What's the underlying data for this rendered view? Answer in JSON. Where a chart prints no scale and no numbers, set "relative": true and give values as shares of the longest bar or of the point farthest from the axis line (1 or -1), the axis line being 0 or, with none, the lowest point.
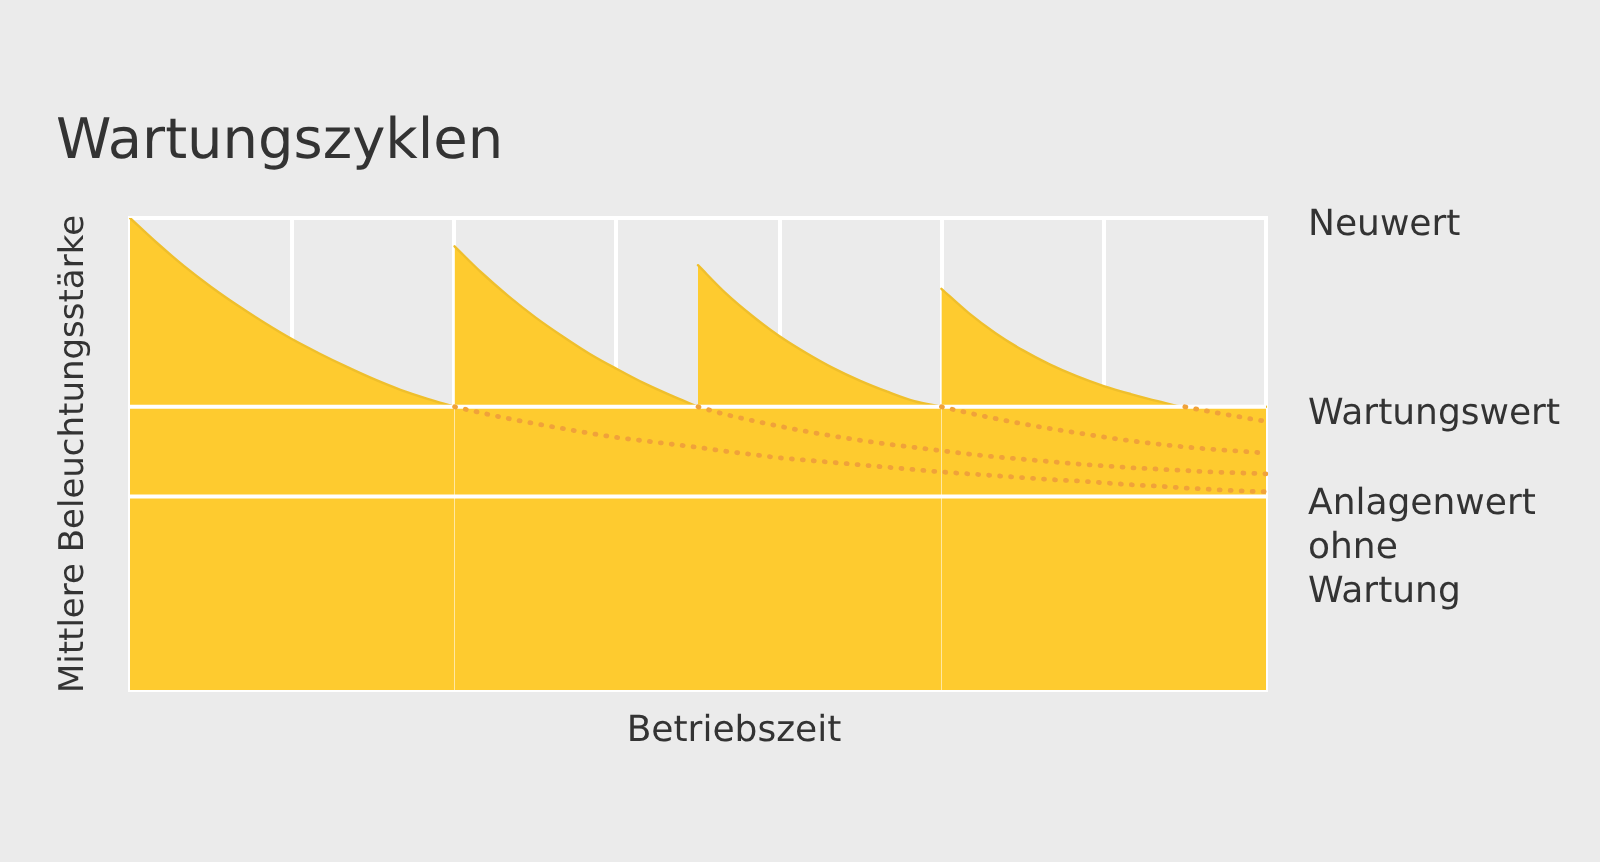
{
  "chart_data": {
    "type": "area",
    "title": "Wartungszyklen",
    "xlabel": "Betriebszeit",
    "ylabel": "Mittlere Beleuchtungsstärke",
    "relative": true,
    "grid": "x",
    "tick_labels": false,
    "categories": [
      null,
      null,
      null,
      null,
      null,
      null,
      null,
      null,
      null,
      null,
      null,
      null,
      null,
      null,
      null,
      null,
      null,
      null,
      null,
      null,
      null,
      null,
      null,
      null,
      null,
      null,
      null,
      null,
      null,
      null,
      null,
      null,
      null,
      null,
      null,
      null,
      null,
      null,
      null,
      null,
      null,
      null,
      null
    ],
    "series": [
      {
        "color": "#fecb2f",
        "values": [
          1.0,
          0.947,
          0.898,
          0.854,
          0.814,
          0.777,
          0.743,
          0.713,
          0.685,
          0.659,
          0.636,
          0.617,
          0.6,
          null,
          null,
          null,
          null,
          null,
          null,
          null,
          null,
          null,
          null,
          null,
          null,
          null,
          null,
          null,
          null,
          null,
          null,
          null,
          null,
          null,
          null,
          null,
          null,
          null,
          null,
          null,
          null,
          null,
          null
        ]
      },
      {
        "color": "#fecb2f",
        "values": [
          null,
          null,
          null,
          null,
          null,
          null,
          null,
          null,
          null,
          null,
          null,
          null,
          0.94,
          0.884,
          0.834,
          0.789,
          0.749,
          0.712,
          0.68,
          0.65,
          0.624,
          0.6,
          null,
          null,
          null,
          null,
          null,
          null,
          null,
          null,
          null,
          null,
          null,
          null,
          null,
          null,
          null,
          null,
          null,
          null,
          null,
          null,
          null
        ]
      },
      {
        "color": "#fecb2f",
        "values": [
          null,
          null,
          null,
          null,
          null,
          null,
          null,
          null,
          null,
          null,
          null,
          null,
          null,
          null,
          null,
          null,
          null,
          null,
          null,
          null,
          null,
          0.9,
          0.842,
          0.793,
          0.75,
          0.714,
          0.682,
          0.655,
          0.632,
          0.612,
          0.6,
          null,
          null,
          null,
          null,
          null,
          null,
          null,
          null,
          null,
          null,
          null,
          null
        ]
      },
      {
        "color": "#fecb2f",
        "values": [
          null,
          null,
          null,
          null,
          null,
          null,
          null,
          null,
          null,
          null,
          null,
          null,
          null,
          null,
          null,
          null,
          null,
          null,
          null,
          null,
          null,
          null,
          null,
          null,
          null,
          null,
          null,
          null,
          null,
          null,
          0.85,
          0.799,
          0.756,
          0.72,
          0.69,
          0.665,
          0.644,
          0.627,
          0.612,
          0.6,
          0.6,
          0.6,
          0.6
        ]
      },
      {
        "type": "line",
        "line_style": "dotted",
        "color": "#f0a23a",
        "values": [
          null,
          null,
          null,
          null,
          null,
          null,
          null,
          null,
          null,
          null,
          null,
          null,
          0.6,
          0.587,
          0.575,
          0.564,
          0.554,
          0.544,
          0.535,
          0.528,
          0.521,
          0.514,
          0.506,
          0.499,
          0.492,
          0.487,
          0.482,
          0.477,
          0.472,
          0.467,
          0.462,
          0.458,
          0.454,
          0.45,
          0.446,
          0.443,
          0.439,
          0.435,
          0.432,
          0.428,
          0.425,
          0.422,
          0.42
        ]
      },
      {
        "type": "line",
        "line_style": "dotted",
        "color": "#f0a23a",
        "values": [
          null,
          null,
          null,
          null,
          null,
          null,
          null,
          null,
          null,
          null,
          null,
          null,
          null,
          null,
          null,
          null,
          null,
          null,
          null,
          null,
          null,
          0.6,
          0.584,
          0.571,
          0.559,
          0.548,
          0.538,
          0.529,
          0.521,
          0.514,
          0.507,
          0.5,
          0.494,
          0.489,
          0.484,
          0.479,
          0.475,
          0.471,
          0.468,
          0.465,
          0.462,
          0.46,
          0.458
        ]
      },
      {
        "type": "line",
        "line_style": "dotted",
        "color": "#f0a23a",
        "values": [
          null,
          null,
          null,
          null,
          null,
          null,
          null,
          null,
          null,
          null,
          null,
          null,
          null,
          null,
          null,
          null,
          null,
          null,
          null,
          null,
          null,
          null,
          null,
          null,
          null,
          null,
          null,
          null,
          null,
          null,
          0.6,
          0.587,
          0.575,
          0.564,
          0.554,
          0.545,
          0.536,
          0.528,
          0.521,
          0.515,
          0.51,
          0.506,
          0.502
        ]
      },
      {
        "type": "line",
        "line_style": "dotted",
        "color": "#f0a23a",
        "values": [
          null,
          null,
          null,
          null,
          null,
          null,
          null,
          null,
          null,
          null,
          null,
          null,
          null,
          null,
          null,
          null,
          null,
          null,
          null,
          null,
          null,
          null,
          null,
          null,
          null,
          null,
          null,
          null,
          null,
          null,
          null,
          null,
          null,
          null,
          null,
          null,
          null,
          null,
          null,
          0.6,
          0.589,
          0.579,
          0.569
        ]
      }
    ],
    "ref_lines": [
      {
        "axis": "y",
        "value": 0.6,
        "label": "Wartungswert",
        "color": "#ffffff"
      },
      {
        "axis": "y",
        "value": 0.41,
        "label": "Anlagenwert ohne Wartung",
        "color": "#ffffff"
      }
    ],
    "annotations": [
      "Neuwert"
    ]
  }
}
